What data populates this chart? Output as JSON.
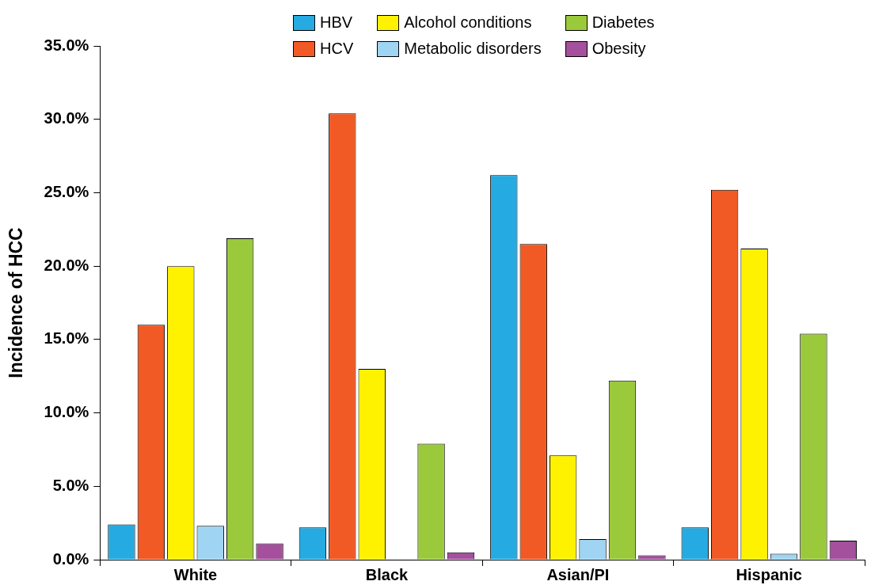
{
  "chart_data": {
    "type": "bar",
    "ylabel": "Incidence of HCC",
    "categories": [
      "White",
      "Black",
      "Asian/PI",
      "Hispanic"
    ],
    "series": [
      {
        "name": "HBV",
        "color": "#25aae1",
        "values": [
          2.4,
          2.2,
          26.2,
          2.2
        ]
      },
      {
        "name": "HCV",
        "color": "#f15a24",
        "values": [
          16.0,
          30.4,
          21.5,
          25.2
        ]
      },
      {
        "name": "Alcohol conditions",
        "color": "#fff200",
        "values": [
          20.0,
          13.0,
          7.1,
          21.2
        ]
      },
      {
        "name": "Metabolic disorders",
        "color": "#9fd4f2",
        "values": [
          2.3,
          null,
          1.4,
          0.4
        ]
      },
      {
        "name": "Diabetes",
        "color": "#9bc93c",
        "values": [
          21.9,
          7.9,
          12.2,
          15.4
        ]
      },
      {
        "name": "Obesity",
        "color": "#a4509c",
        "values": [
          1.1,
          0.5,
          0.3,
          1.3
        ]
      }
    ],
    "ylim": [
      0,
      35
    ],
    "yticks": [
      {
        "value": 0,
        "label": "0.0%"
      },
      {
        "value": 5,
        "label": "5.0%"
      },
      {
        "value": 10,
        "label": "10.0%"
      },
      {
        "value": 15,
        "label": "15.0%"
      },
      {
        "value": 20,
        "label": "20.0%"
      },
      {
        "value": 25,
        "label": "25.0%"
      },
      {
        "value": 30,
        "label": "30.0%"
      },
      {
        "value": 35,
        "label": "35.0%"
      }
    ],
    "grid": false,
    "legend": "top"
  }
}
